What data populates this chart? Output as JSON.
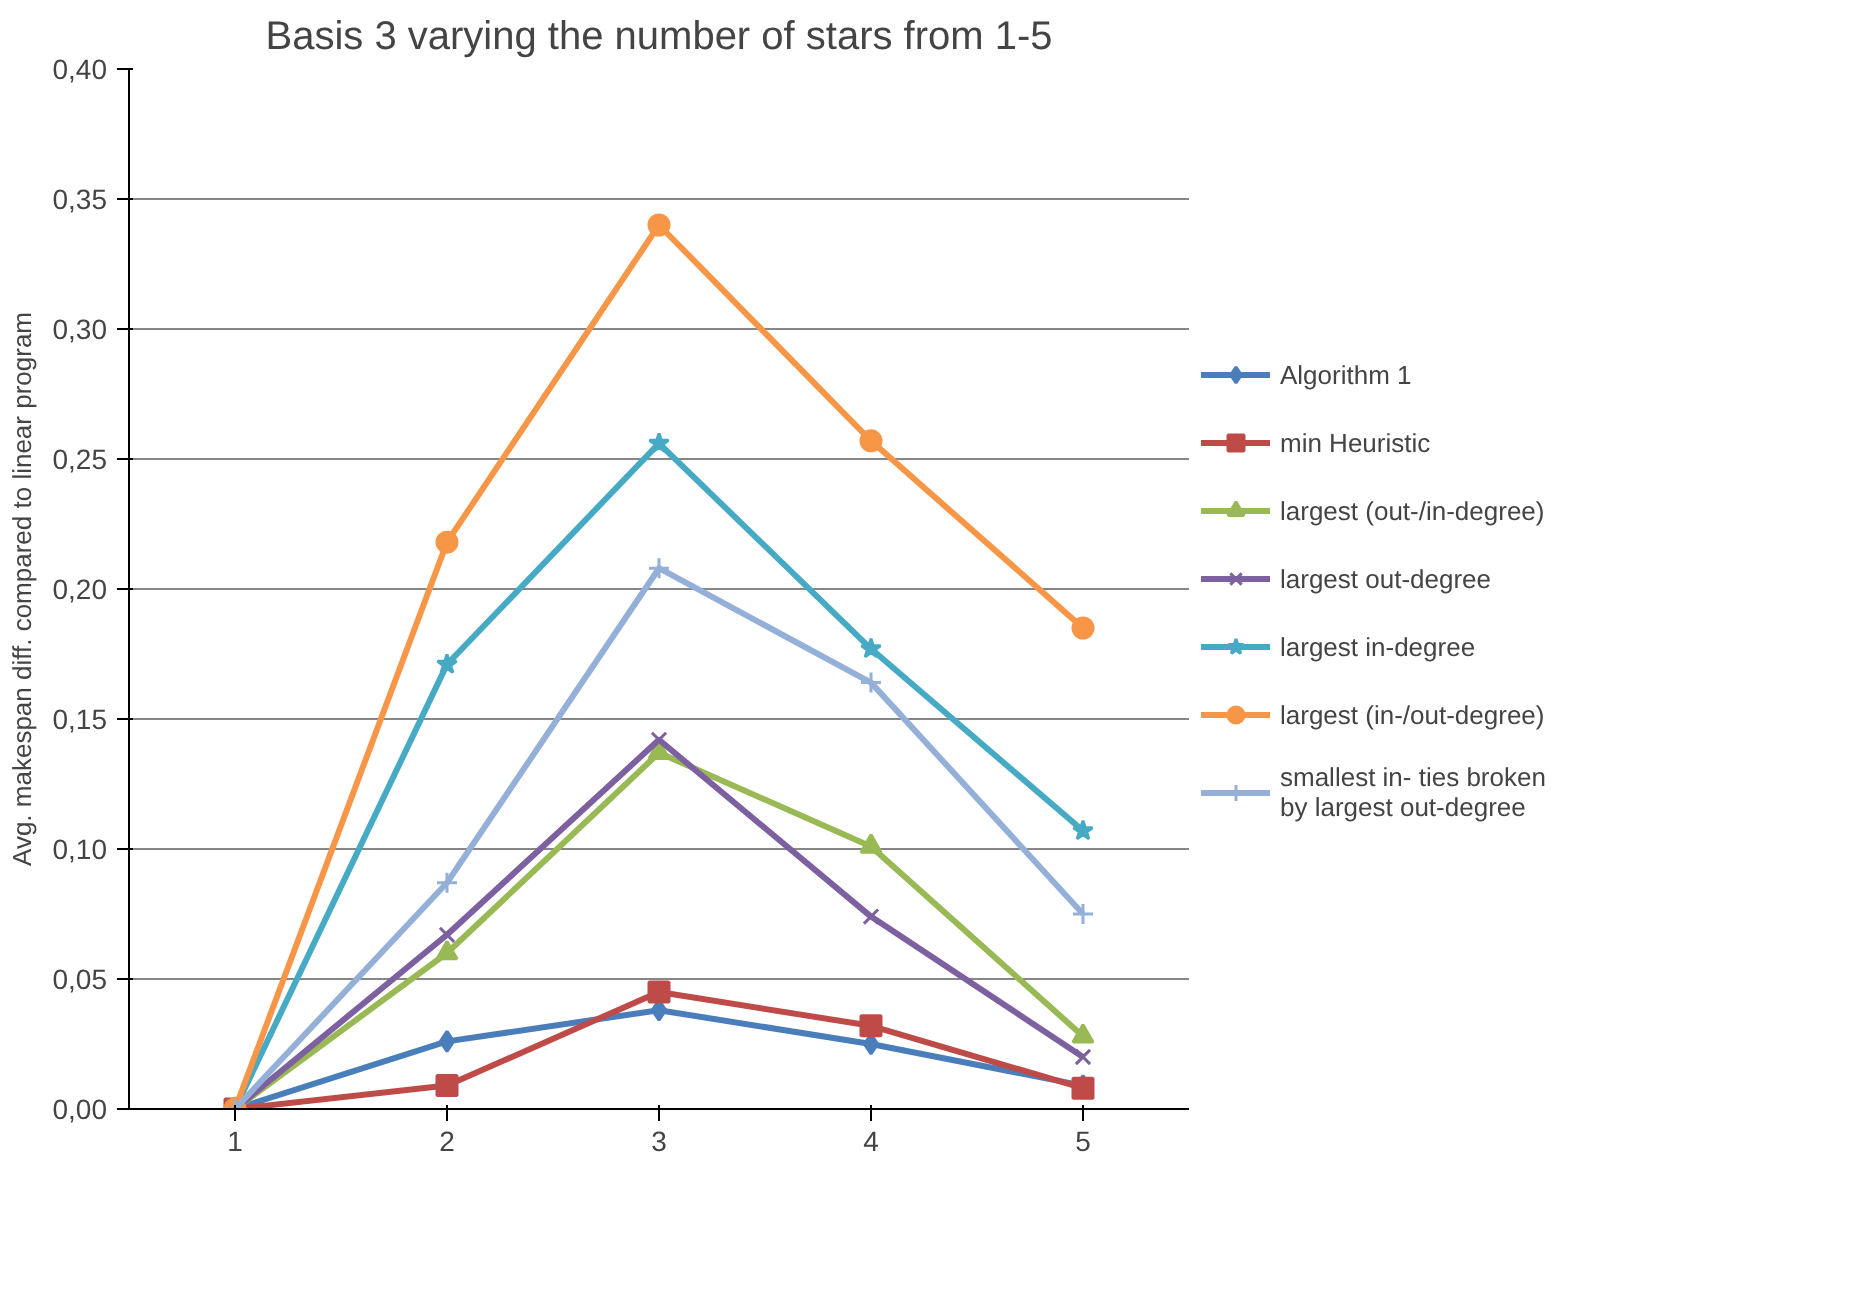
{
  "chart_data": {
    "type": "line",
    "title": "Basis 3 varying the number of stars from 1-5",
    "ylabel": "Avg. makespan diff. compared to linear program",
    "categories": [
      "1",
      "2",
      "3",
      "4",
      "5"
    ],
    "series": [
      {
        "name": "Algorithm 1",
        "color": "#4a7ebb",
        "marker": "diamond",
        "values": [
          0,
          0.026,
          0.038,
          0.025,
          0.009
        ]
      },
      {
        "name": "min Heuristic",
        "color": "#be4b48",
        "marker": "square",
        "values": [
          0,
          0.009,
          0.045,
          0.032,
          0.008
        ]
      },
      {
        "name": "largest (out-/in-degree)",
        "color": "#98b954",
        "marker": "triangle",
        "values": [
          0,
          0.06,
          0.137,
          0.101,
          0.028
        ]
      },
      {
        "name": "largest out-degree",
        "color": "#7d60a0",
        "marker": "x",
        "values": [
          0,
          0.067,
          0.142,
          0.074,
          0.02
        ]
      },
      {
        "name": "largest in-degree",
        "color": "#46aac5",
        "marker": "star",
        "values": [
          0,
          0.171,
          0.256,
          0.177,
          0.107
        ]
      },
      {
        "name": "largest (in-/out-degree)",
        "color": "#f79646",
        "marker": "circle",
        "values": [
          0,
          0.218,
          0.34,
          0.257,
          0.185
        ]
      },
      {
        "name": "smallest in- ties broken by largest out-degree",
        "color": "#94afd8",
        "marker": "cross",
        "values": [
          0,
          0.087,
          0.208,
          0.164,
          0.075
        ]
      }
    ],
    "ylim": [
      0,
      0.4
    ],
    "yticks": [
      {
        "value": 0,
        "label": "0,00"
      },
      {
        "value": 0.05,
        "label": "0,05"
      },
      {
        "value": 0.1,
        "label": "0,10"
      },
      {
        "value": 0.15,
        "label": "0,15"
      },
      {
        "value": 0.2,
        "label": "0,20"
      },
      {
        "value": 0.25,
        "label": "0,25"
      },
      {
        "value": 0.3,
        "label": "0,30"
      },
      {
        "value": 0.35,
        "label": "0,35"
      },
      {
        "value": 0.4,
        "label": "0,40"
      }
    ],
    "grid": "y",
    "legend": "right",
    "line_style": "solid"
  }
}
